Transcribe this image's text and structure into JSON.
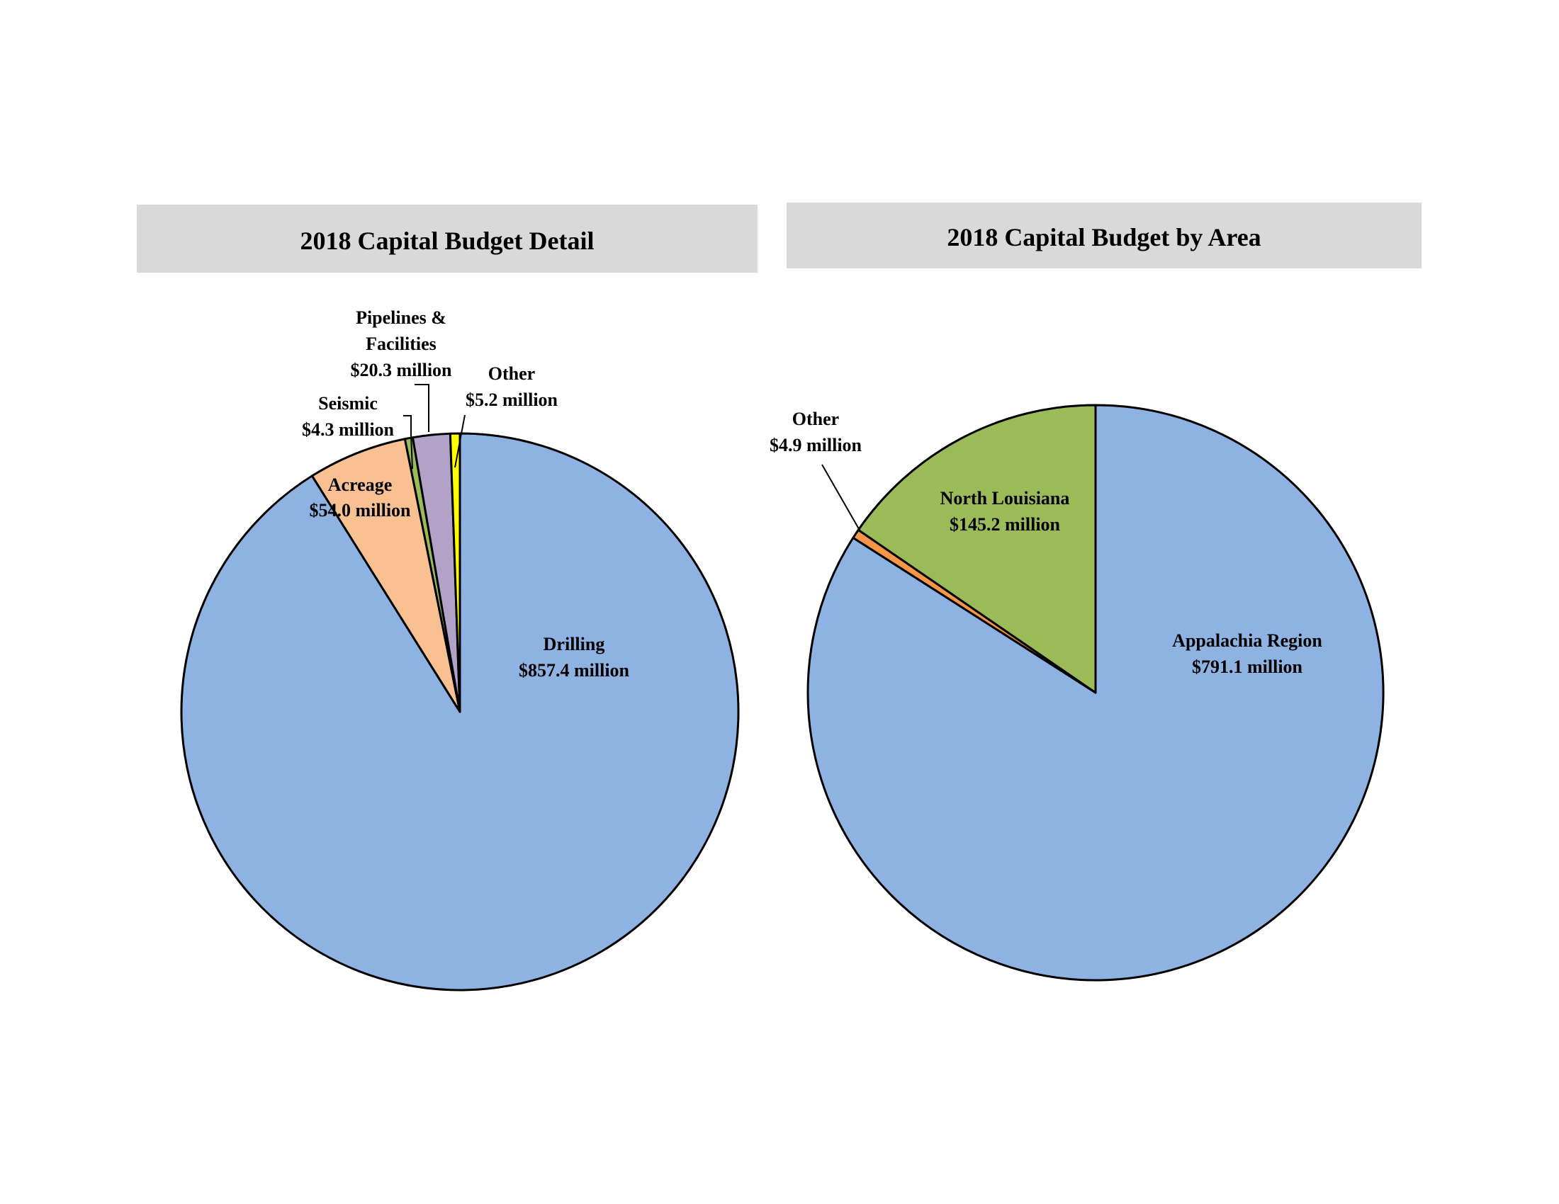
{
  "chart_data": [
    {
      "type": "pie",
      "title": "2018 Capital Budget Detail",
      "unit": "$ million",
      "slices": [
        {
          "name": "Drilling",
          "label_line1": "Drilling",
          "label_line2": "$857.4 million",
          "value": 857.4,
          "color": "#8eb3e2"
        },
        {
          "name": "Acreage",
          "label_line1": "Acreage",
          "label_line2": "$54.0 million",
          "value": 54.0,
          "color": "#f9c192"
        },
        {
          "name": "Seismic",
          "label_line1": "Seismic",
          "label_line2": "$4.3 million",
          "value": 4.3,
          "color": "#9bbb59"
        },
        {
          "name": "Pipelines & Facilities",
          "label_line1": "Pipelines &",
          "label_line1b": "Facilities",
          "label_line2": "$20.3 million",
          "value": 20.3,
          "color": "#b2a2c7"
        },
        {
          "name": "Other",
          "label_line1": "Other",
          "label_line2": "$5.2 million",
          "value": 5.2,
          "color": "#ffff00"
        }
      ]
    },
    {
      "type": "pie",
      "title": "2018 Capital Budget by Area",
      "unit": "$ million",
      "slices": [
        {
          "name": "Appalachia Region",
          "label_line1": "Appalachia Region",
          "label_line2": "$791.1 million",
          "value": 791.1,
          "color": "#8eb3e2"
        },
        {
          "name": "Other",
          "label_line1": "Other",
          "label_line2": "$4.9 million",
          "value": 4.9,
          "color": "#f79646"
        },
        {
          "name": "North Louisiana",
          "label_line1": "North Louisiana",
          "label_line2": "$145.2 million",
          "value": 145.2,
          "color": "#9bbb59"
        }
      ]
    }
  ]
}
